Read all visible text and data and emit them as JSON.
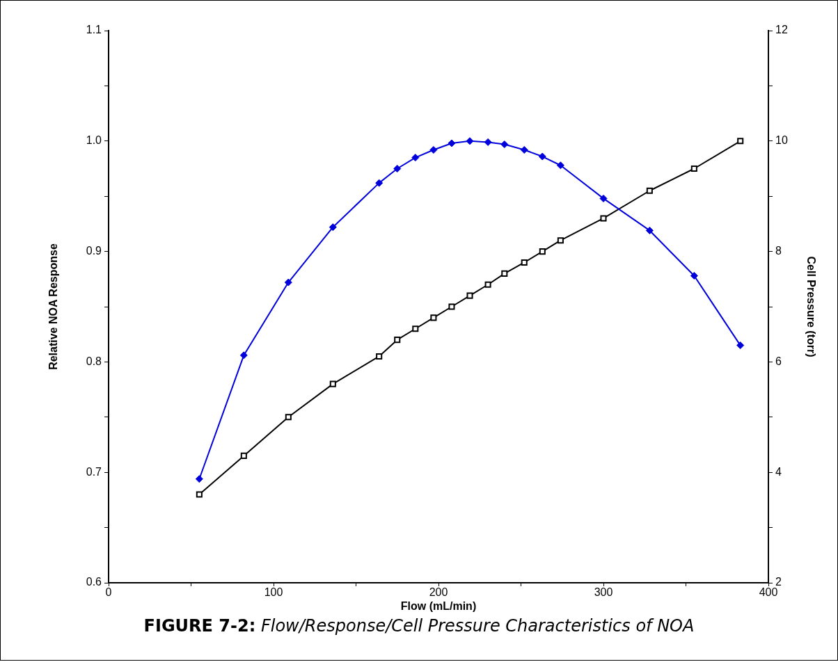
{
  "chart_data": {
    "type": "line",
    "title": "FIGURE 7-2:",
    "subtitle": "Flow/Response/Cell Pressure Characteristics of NOA",
    "xlabel": "Flow (mL/min)",
    "ylabel": "Relative NOA Response",
    "y2label": "Cell Pressure (torr)",
    "x": [
      55,
      82,
      109,
      136,
      164,
      175,
      186,
      197,
      208,
      219,
      230,
      240,
      252,
      263,
      274,
      300,
      328,
      355,
      383
    ],
    "series": [
      {
        "color": "#0000dd",
        "marker": "diamond",
        "values": [
          0.694,
          0.806,
          0.872,
          0.922,
          0.962,
          0.975,
          0.985,
          0.992,
          0.998,
          1.0,
          0.999,
          0.997,
          0.992,
          0.986,
          0.978,
          0.948,
          0.919,
          0.878,
          0.815
        ]
      },
      {
        "color": "#000000",
        "marker": "square",
        "axis": "y2",
        "values": [
          3.6,
          4.3,
          5.0,
          5.6,
          6.1,
          6.4,
          6.6,
          6.8,
          7.0,
          7.2,
          7.4,
          7.6,
          7.8,
          8.0,
          8.2,
          8.6,
          9.1,
          9.5,
          10.0
        ]
      }
    ],
    "xlim": [
      0,
      400
    ],
    "xticks": [
      0,
      {
        "value": 50,
        "label": null
      },
      100,
      {
        "value": 150,
        "label": null
      },
      200,
      {
        "value": 250,
        "label": null
      },
      300,
      {
        "value": 350,
        "label": null
      },
      400
    ],
    "ylim": [
      0.6,
      1.1
    ],
    "yticks": [
      0.6,
      {
        "value": 0.65,
        "label": null
      },
      0.7,
      {
        "value": 0.75,
        "label": null
      },
      0.8,
      {
        "value": 0.85,
        "label": null
      },
      0.9,
      {
        "value": 0.95,
        "label": null
      },
      {
        "value": 1.0,
        "label": "1.0"
      },
      {
        "value": 1.05,
        "label": null
      },
      1.1
    ],
    "y2lim": [
      2,
      12
    ],
    "y2ticks": [
      2,
      {
        "value": 3,
        "label": null
      },
      4,
      {
        "value": 5,
        "label": null
      },
      6,
      {
        "value": 7,
        "label": null
      },
      8,
      {
        "value": 9,
        "label": null
      },
      10,
      {
        "value": 11,
        "label": null
      },
      12
    ],
    "grid": false,
    "legend": false,
    "line_style": "solid"
  }
}
